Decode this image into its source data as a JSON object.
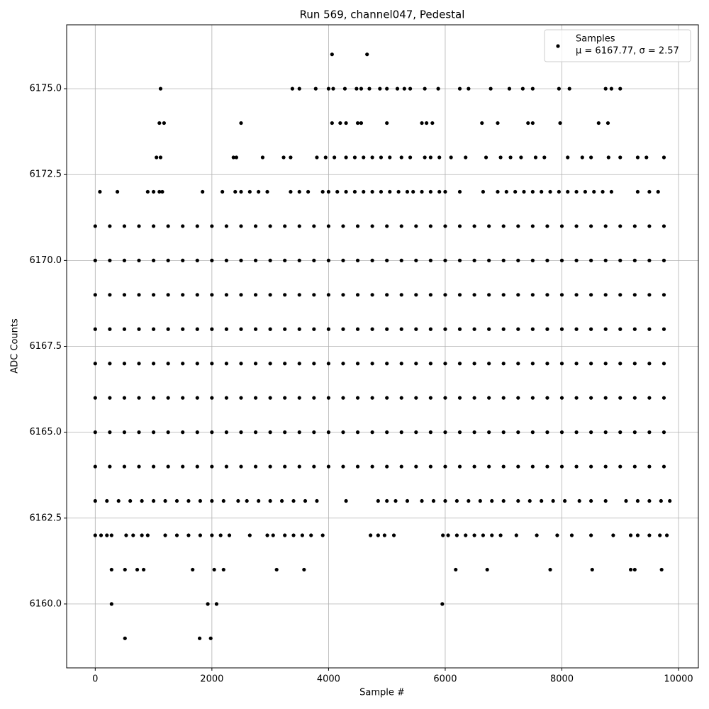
{
  "chart_data": {
    "type": "scatter",
    "title": "Run 569, channel047, Pedestal",
    "xlabel": "Sample #",
    "ylabel": "ADC Counts",
    "xlim": [
      -490,
      10340
    ],
    "ylim": [
      6158.14,
      6176.86
    ],
    "xticks": [
      0,
      2000,
      4000,
      6000,
      8000,
      10000
    ],
    "yticks": [
      {
        "value": 6160,
        "label": "6160.0"
      },
      {
        "value": 6162.5,
        "label": "6162.5"
      },
      {
        "value": 6165,
        "label": "6165.0"
      },
      {
        "value": 6167.5,
        "label": "6167.5"
      },
      {
        "value": 6170,
        "label": "6170.0"
      },
      {
        "value": 6172.5,
        "label": "6172.5"
      },
      {
        "value": 6175,
        "label": "6175.0"
      }
    ],
    "grid": true,
    "legend": "upper right",
    "legend_note": "μ = 6167.77, σ = 2.57",
    "x": [
      4060,
      4660,
      1120,
      3380,
      3500,
      3780,
      4000,
      4080,
      4280,
      4480,
      4560,
      4700,
      4880,
      5000,
      5180,
      5300,
      5400,
      5650,
      5880,
      6250,
      6400,
      6780,
      7100,
      7330,
      7500,
      7950,
      8130,
      8750,
      8850,
      9000,
      1100,
      1180,
      2500,
      4060,
      4200,
      4300,
      4500,
      4560,
      5000,
      5600,
      5680,
      5780,
      6630,
      6900,
      7420,
      7500,
      7970,
      8630,
      8790,
      1050,
      1120,
      2370,
      2420,
      2870,
      3230,
      3350,
      3800,
      3950,
      4100,
      4300,
      4450,
      4600,
      4750,
      4900,
      5050,
      5250,
      5400,
      5650,
      5750,
      5900,
      6100,
      6350,
      6700,
      6950,
      7120,
      7300,
      7550,
      7700,
      8100,
      8350,
      8500,
      8800,
      9000,
      9300,
      9450,
      9750,
      80,
      380,
      900,
      1000,
      1100,
      1150,
      1840,
      2180,
      2400,
      2500,
      2650,
      2800,
      2950,
      3350,
      3500,
      3650,
      3900,
      4000,
      4150,
      4300,
      4450,
      4600,
      4750,
      4900,
      5050,
      5200,
      5350,
      5450,
      5600,
      5750,
      5900,
      6000,
      6250,
      6650,
      6900,
      7050,
      7200,
      7350,
      7500,
      7650,
      7800,
      7950,
      8100,
      8250,
      8400,
      8550,
      8700,
      8850,
      9300,
      9500,
      9650,
      0,
      250,
      500,
      750,
      1000,
      1250,
      1500,
      1750,
      2000,
      2250,
      2500,
      2750,
      3000,
      3250,
      3500,
      3750,
      4000,
      4250,
      4500,
      4750,
      5000,
      5250,
      5500,
      5750,
      6000,
      6250,
      6500,
      6750,
      7000,
      7250,
      7500,
      7750,
      8000,
      8250,
      8500,
      8750,
      9000,
      9250,
      9500,
      9750,
      0,
      250,
      500,
      750,
      1000,
      1250,
      1500,
      1750,
      2000,
      2250,
      2500,
      2750,
      3000,
      3250,
      3500,
      3750,
      4000,
      4250,
      4500,
      4750,
      5000,
      5250,
      5500,
      5750,
      6000,
      6250,
      6500,
      6750,
      7000,
      7250,
      7500,
      7750,
      8000,
      8250,
      8500,
      8750,
      9000,
      9250,
      9500,
      9750,
      0,
      250,
      500,
      750,
      1000,
      1250,
      1500,
      1750,
      2000,
      2250,
      2500,
      2750,
      3000,
      3250,
      3500,
      3750,
      4000,
      4250,
      4500,
      4750,
      5000,
      5250,
      5500,
      5750,
      6000,
      6250,
      6500,
      6750,
      7000,
      7250,
      7500,
      7750,
      8000,
      8250,
      8500,
      8750,
      9000,
      9250,
      9500,
      9750,
      0,
      250,
      500,
      750,
      1000,
      1250,
      1500,
      1750,
      2000,
      2250,
      2500,
      2750,
      3000,
      3250,
      3500,
      3750,
      4000,
      4250,
      4500,
      4750,
      5000,
      5250,
      5500,
      5750,
      6000,
      6250,
      6500,
      6750,
      7000,
      7250,
      7500,
      7750,
      8000,
      8250,
      8500,
      8750,
      9000,
      9250,
      9500,
      9750,
      0,
      250,
      500,
      750,
      1000,
      1250,
      1500,
      1750,
      2000,
      2250,
      2500,
      2750,
      3000,
      3250,
      3500,
      3750,
      4000,
      4250,
      4500,
      4750,
      5000,
      5250,
      5500,
      5750,
      6000,
      6250,
      6500,
      6750,
      7000,
      7250,
      7500,
      7750,
      8000,
      8250,
      8500,
      8750,
      9000,
      9250,
      9500,
      9750,
      0,
      250,
      500,
      750,
      1000,
      1250,
      1500,
      1750,
      2000,
      2250,
      2500,
      2750,
      3000,
      3250,
      3500,
      3750,
      4000,
      4250,
      4500,
      4750,
      5000,
      5250,
      5500,
      5750,
      6000,
      6250,
      6500,
      6750,
      7000,
      7250,
      7500,
      7750,
      8000,
      8250,
      8500,
      8750,
      9000,
      9250,
      9500,
      9750,
      0,
      250,
      500,
      750,
      1000,
      1250,
      1500,
      1750,
      2000,
      2250,
      2500,
      2750,
      3000,
      3250,
      3500,
      3750,
      4000,
      4250,
      4500,
      4750,
      5000,
      5250,
      5500,
      5750,
      6000,
      6250,
      6500,
      6750,
      7000,
      7250,
      7500,
      7750,
      8000,
      8250,
      8500,
      8750,
      9000,
      9250,
      9500,
      9750,
      0,
      250,
      500,
      750,
      1000,
      1250,
      1500,
      1750,
      2000,
      2250,
      2500,
      2750,
      3000,
      3250,
      3500,
      3750,
      4000,
      4250,
      4500,
      4750,
      5000,
      5250,
      5500,
      5750,
      6000,
      6250,
      6500,
      6750,
      7000,
      7250,
      7500,
      7750,
      8000,
      8250,
      8500,
      8750,
      9000,
      9250,
      9500,
      9750,
      0,
      200,
      400,
      600,
      800,
      1000,
      1200,
      1400,
      1600,
      1800,
      2000,
      2200,
      2450,
      2600,
      2800,
      3000,
      3200,
      3400,
      3600,
      3800,
      4300,
      4850,
      5000,
      5150,
      5350,
      5600,
      5800,
      6000,
      6200,
      6400,
      6600,
      6800,
      7000,
      7250,
      7450,
      7650,
      7850,
      8050,
      8300,
      8500,
      8750,
      9100,
      9300,
      9500,
      9700,
      9850,
      0,
      100,
      200,
      280,
      530,
      650,
      800,
      900,
      1200,
      1400,
      1600,
      1800,
      2000,
      2150,
      2300,
      2650,
      2950,
      3050,
      3250,
      3400,
      3550,
      3700,
      3900,
      4720,
      4850,
      4960,
      5120,
      5960,
      6050,
      6200,
      6350,
      6500,
      6650,
      6800,
      6950,
      7220,
      7570,
      7920,
      8170,
      8500,
      8880,
      9180,
      9300,
      9500,
      9680,
      9800,
      280,
      510,
      720,
      830,
      1670,
      2040,
      2200,
      3110,
      3580,
      6180,
      6720,
      7800,
      8520,
      9180,
      9250,
      9710,
      280,
      1930,
      2080,
      5950,
      510,
      1790,
      1980
    ],
    "series": [
      {
        "name": "Samples",
        "color": "#000000",
        "values": [
          6176,
          6176,
          6175,
          6175,
          6175,
          6175,
          6175,
          6175,
          6175,
          6175,
          6175,
          6175,
          6175,
          6175,
          6175,
          6175,
          6175,
          6175,
          6175,
          6175,
          6175,
          6175,
          6175,
          6175,
          6175,
          6175,
          6175,
          6175,
          6175,
          6175,
          6174,
          6174,
          6174,
          6174,
          6174,
          6174,
          6174,
          6174,
          6174,
          6174,
          6174,
          6174,
          6174,
          6174,
          6174,
          6174,
          6174,
          6174,
          6174,
          6173,
          6173,
          6173,
          6173,
          6173,
          6173,
          6173,
          6173,
          6173,
          6173,
          6173,
          6173,
          6173,
          6173,
          6173,
          6173,
          6173,
          6173,
          6173,
          6173,
          6173,
          6173,
          6173,
          6173,
          6173,
          6173,
          6173,
          6173,
          6173,
          6173,
          6173,
          6173,
          6173,
          6173,
          6173,
          6173,
          6173,
          6172,
          6172,
          6172,
          6172,
          6172,
          6172,
          6172,
          6172,
          6172,
          6172,
          6172,
          6172,
          6172,
          6172,
          6172,
          6172,
          6172,
          6172,
          6172,
          6172,
          6172,
          6172,
          6172,
          6172,
          6172,
          6172,
          6172,
          6172,
          6172,
          6172,
          6172,
          6172,
          6172,
          6172,
          6172,
          6172,
          6172,
          6172,
          6172,
          6172,
          6172,
          6172,
          6172,
          6172,
          6172,
          6172,
          6172,
          6172,
          6172,
          6172,
          6172,
          6171,
          6171,
          6171,
          6171,
          6171,
          6171,
          6171,
          6171,
          6171,
          6171,
          6171,
          6171,
          6171,
          6171,
          6171,
          6171,
          6171,
          6171,
          6171,
          6171,
          6171,
          6171,
          6171,
          6171,
          6171,
          6171,
          6171,
          6171,
          6171,
          6171,
          6171,
          6171,
          6171,
          6171,
          6171,
          6171,
          6171,
          6171,
          6171,
          6171,
          6170,
          6170,
          6170,
          6170,
          6170,
          6170,
          6170,
          6170,
          6170,
          6170,
          6170,
          6170,
          6170,
          6170,
          6170,
          6170,
          6170,
          6170,
          6170,
          6170,
          6170,
          6170,
          6170,
          6170,
          6170,
          6170,
          6170,
          6170,
          6170,
          6170,
          6170,
          6170,
          6170,
          6170,
          6170,
          6170,
          6170,
          6170,
          6170,
          6170,
          6169,
          6169,
          6169,
          6169,
          6169,
          6169,
          6169,
          6169,
          6169,
          6169,
          6169,
          6169,
          6169,
          6169,
          6169,
          6169,
          6169,
          6169,
          6169,
          6169,
          6169,
          6169,
          6169,
          6169,
          6169,
          6169,
          6169,
          6169,
          6169,
          6169,
          6169,
          6169,
          6169,
          6169,
          6169,
          6169,
          6169,
          6169,
          6169,
          6169,
          6168,
          6168,
          6168,
          6168,
          6168,
          6168,
          6168,
          6168,
          6168,
          6168,
          6168,
          6168,
          6168,
          6168,
          6168,
          6168,
          6168,
          6168,
          6168,
          6168,
          6168,
          6168,
          6168,
          6168,
          6168,
          6168,
          6168,
          6168,
          6168,
          6168,
          6168,
          6168,
          6168,
          6168,
          6168,
          6168,
          6168,
          6168,
          6168,
          6168,
          6167,
          6167,
          6167,
          6167,
          6167,
          6167,
          6167,
          6167,
          6167,
          6167,
          6167,
          6167,
          6167,
          6167,
          6167,
          6167,
          6167,
          6167,
          6167,
          6167,
          6167,
          6167,
          6167,
          6167,
          6167,
          6167,
          6167,
          6167,
          6167,
          6167,
          6167,
          6167,
          6167,
          6167,
          6167,
          6167,
          6167,
          6167,
          6167,
          6167,
          6166,
          6166,
          6166,
          6166,
          6166,
          6166,
          6166,
          6166,
          6166,
          6166,
          6166,
          6166,
          6166,
          6166,
          6166,
          6166,
          6166,
          6166,
          6166,
          6166,
          6166,
          6166,
          6166,
          6166,
          6166,
          6166,
          6166,
          6166,
          6166,
          6166,
          6166,
          6166,
          6166,
          6166,
          6166,
          6166,
          6166,
          6166,
          6166,
          6166,
          6165,
          6165,
          6165,
          6165,
          6165,
          6165,
          6165,
          6165,
          6165,
          6165,
          6165,
          6165,
          6165,
          6165,
          6165,
          6165,
          6165,
          6165,
          6165,
          6165,
          6165,
          6165,
          6165,
          6165,
          6165,
          6165,
          6165,
          6165,
          6165,
          6165,
          6165,
          6165,
          6165,
          6165,
          6165,
          6165,
          6165,
          6165,
          6165,
          6165,
          6164,
          6164,
          6164,
          6164,
          6164,
          6164,
          6164,
          6164,
          6164,
          6164,
          6164,
          6164,
          6164,
          6164,
          6164,
          6164,
          6164,
          6164,
          6164,
          6164,
          6164,
          6164,
          6164,
          6164,
          6164,
          6164,
          6164,
          6164,
          6164,
          6164,
          6164,
          6164,
          6164,
          6164,
          6164,
          6164,
          6164,
          6164,
          6164,
          6164,
          6163,
          6163,
          6163,
          6163,
          6163,
          6163,
          6163,
          6163,
          6163,
          6163,
          6163,
          6163,
          6163,
          6163,
          6163,
          6163,
          6163,
          6163,
          6163,
          6163,
          6163,
          6163,
          6163,
          6163,
          6163,
          6163,
          6163,
          6163,
          6163,
          6163,
          6163,
          6163,
          6163,
          6163,
          6163,
          6163,
          6163,
          6163,
          6163,
          6163,
          6163,
          6163,
          6163,
          6163,
          6163,
          6163,
          6162,
          6162,
          6162,
          6162,
          6162,
          6162,
          6162,
          6162,
          6162,
          6162,
          6162,
          6162,
          6162,
          6162,
          6162,
          6162,
          6162,
          6162,
          6162,
          6162,
          6162,
          6162,
          6162,
          6162,
          6162,
          6162,
          6162,
          6162,
          6162,
          6162,
          6162,
          6162,
          6162,
          6162,
          6162,
          6162,
          6162,
          6162,
          6162,
          6162,
          6162,
          6162,
          6162,
          6162,
          6162,
          6162,
          6161,
          6161,
          6161,
          6161,
          6161,
          6161,
          6161,
          6161,
          6161,
          6161,
          6161,
          6161,
          6161,
          6161,
          6161,
          6161,
          6160,
          6160,
          6160,
          6160,
          6159,
          6159,
          6159
        ]
      }
    ]
  }
}
